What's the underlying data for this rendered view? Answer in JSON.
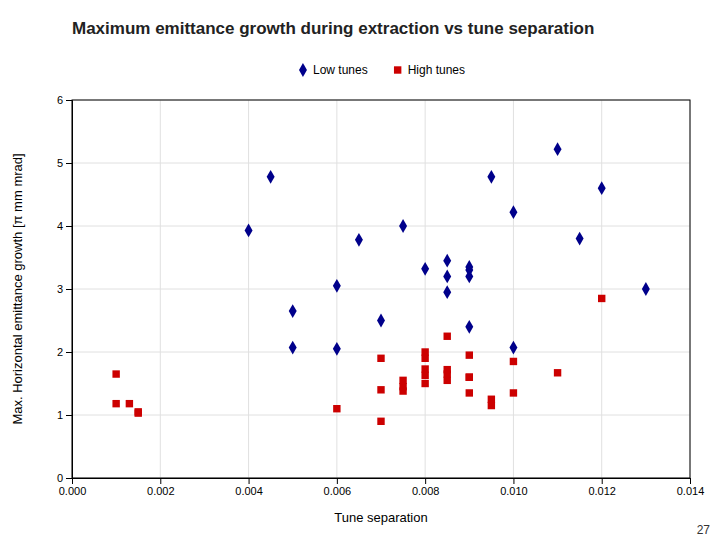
{
  "chart_data": {
    "type": "scatter",
    "title": "Maximum emittance growth during extraction vs tune separation",
    "x_label": "Tune separation",
    "y_label": "Max. Horizontal emittance growth [π mm mrad]",
    "xlim": [
      0.0,
      0.014
    ],
    "ylim": [
      0.0,
      6.0
    ],
    "xticks": [
      {
        "value": 0.0,
        "label": "0.000"
      },
      {
        "value": 0.002,
        "label": "0.002"
      },
      {
        "value": 0.004,
        "label": "0.004"
      },
      {
        "value": 0.006,
        "label": "0.006"
      },
      {
        "value": 0.008,
        "label": "0.008"
      },
      {
        "value": 0.01,
        "label": "0.010"
      },
      {
        "value": 0.012,
        "label": "0.012"
      },
      {
        "value": 0.014,
        "label": "0.014"
      }
    ],
    "yticks": [
      0,
      1,
      2,
      3,
      4,
      5,
      6
    ],
    "grid": true,
    "legend": "top",
    "series": [
      {
        "name": "Low tunes",
        "color": "#00008B",
        "marker": "diamond",
        "x": [
          0.004,
          0.0045,
          0.005,
          0.005,
          0.006,
          0.006,
          0.0065,
          0.007,
          0.0075,
          0.008,
          0.0085,
          0.0085,
          0.0085,
          0.009,
          0.009,
          0.009,
          0.009,
          0.0095,
          0.01,
          0.01,
          0.011,
          0.0115,
          0.012,
          0.013
        ],
        "values": [
          3.93,
          4.78,
          2.07,
          2.65,
          3.05,
          2.05,
          3.78,
          2.5,
          4.0,
          3.32,
          3.2,
          3.45,
          2.95,
          3.35,
          3.3,
          3.2,
          2.4,
          4.78,
          4.22,
          2.07,
          5.22,
          3.8,
          4.6,
          3.0
        ]
      },
      {
        "name": "High tunes",
        "color": "#CC0000",
        "marker": "square",
        "x": [
          0.001,
          0.001,
          0.0013,
          0.0015,
          0.0015,
          0.006,
          0.007,
          0.007,
          0.007,
          0.0075,
          0.0075,
          0.0075,
          0.008,
          0.008,
          0.008,
          0.008,
          0.008,
          0.0085,
          0.0085,
          0.0085,
          0.0085,
          0.009,
          0.009,
          0.009,
          0.009,
          0.0095,
          0.0095,
          0.01,
          0.01,
          0.011,
          0.012
        ],
        "values": [
          1.65,
          1.18,
          1.18,
          1.05,
          1.03,
          1.1,
          0.9,
          1.4,
          1.9,
          1.45,
          1.38,
          1.55,
          1.5,
          1.63,
          1.73,
          1.9,
          2.0,
          1.55,
          1.65,
          1.72,
          2.25,
          1.35,
          1.6,
          1.6,
          1.95,
          1.15,
          1.25,
          1.35,
          1.85,
          1.67,
          2.85
        ]
      }
    ],
    "annotations": [
      "27"
    ]
  }
}
